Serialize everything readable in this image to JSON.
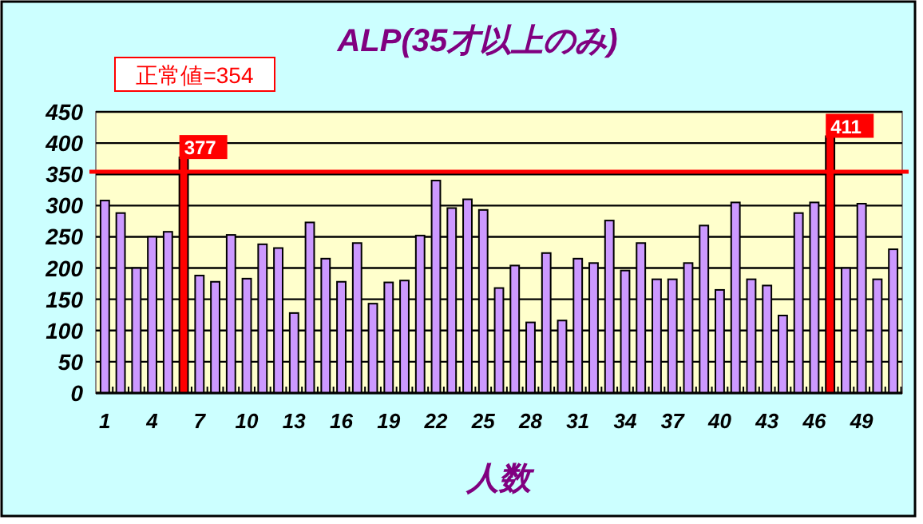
{
  "chart_data": {
    "type": "bar",
    "title": "ALP(35才以上のみ)",
    "xlabel": "人数",
    "categories": [
      "1",
      null,
      null,
      "4",
      null,
      null,
      "7",
      null,
      null,
      "10",
      null,
      null,
      "13",
      null,
      null,
      "16",
      null,
      null,
      "19",
      null,
      null,
      "22",
      null,
      null,
      "25",
      null,
      null,
      "28",
      null,
      null,
      "31",
      null,
      null,
      "34",
      null,
      null,
      "37",
      null,
      null,
      "40",
      null,
      null,
      "43",
      null,
      null,
      "46",
      null,
      null,
      "49",
      null,
      null
    ],
    "values": [
      308,
      288,
      200,
      250,
      258,
      377,
      188,
      178,
      253,
      183,
      238,
      232,
      128,
      273,
      215,
      178,
      240,
      143,
      177,
      180,
      252,
      340,
      296,
      310,
      293,
      168,
      204,
      113,
      224,
      116,
      215,
      208,
      276,
      196,
      240,
      182,
      182,
      208,
      268,
      165,
      305,
      182,
      172,
      124,
      288,
      305,
      411,
      200,
      303,
      182,
      230
    ],
    "colors": [
      "#cc99ff",
      "#cc99ff",
      "#cc99ff",
      "#cc99ff",
      "#cc99ff",
      "#ff0000",
      "#cc99ff",
      "#cc99ff",
      "#cc99ff",
      "#cc99ff",
      "#cc99ff",
      "#cc99ff",
      "#cc99ff",
      "#cc99ff",
      "#cc99ff",
      "#cc99ff",
      "#cc99ff",
      "#cc99ff",
      "#cc99ff",
      "#cc99ff",
      "#cc99ff",
      "#cc99ff",
      "#cc99ff",
      "#cc99ff",
      "#cc99ff",
      "#cc99ff",
      "#cc99ff",
      "#cc99ff",
      "#cc99ff",
      "#cc99ff",
      "#cc99ff",
      "#cc99ff",
      "#cc99ff",
      "#cc99ff",
      "#cc99ff",
      "#cc99ff",
      "#cc99ff",
      "#cc99ff",
      "#cc99ff",
      "#cc99ff",
      "#cc99ff",
      "#cc99ff",
      "#cc99ff",
      "#cc99ff",
      "#cc99ff",
      "#cc99ff",
      "#ff0000",
      "#cc99ff",
      "#cc99ff",
      "#cc99ff",
      "#cc99ff"
    ],
    "value_labels": [
      null,
      null,
      null,
      null,
      null,
      "377",
      null,
      null,
      null,
      null,
      null,
      null,
      null,
      null,
      null,
      null,
      null,
      null,
      null,
      null,
      null,
      null,
      null,
      null,
      null,
      null,
      null,
      null,
      null,
      null,
      null,
      null,
      null,
      null,
      null,
      null,
      null,
      null,
      null,
      null,
      null,
      null,
      null,
      null,
      null,
      null,
      "411",
      null,
      null,
      null,
      null
    ],
    "ylim": [
      0,
      450
    ],
    "yticks": [
      0,
      50,
      100,
      150,
      200,
      250,
      300,
      350,
      400,
      450
    ],
    "grid": "y",
    "ref_lines": [
      {
        "axis": "y",
        "value": 354,
        "color": "#ff0000"
      }
    ],
    "annotations": [
      "正常値=354"
    ]
  }
}
